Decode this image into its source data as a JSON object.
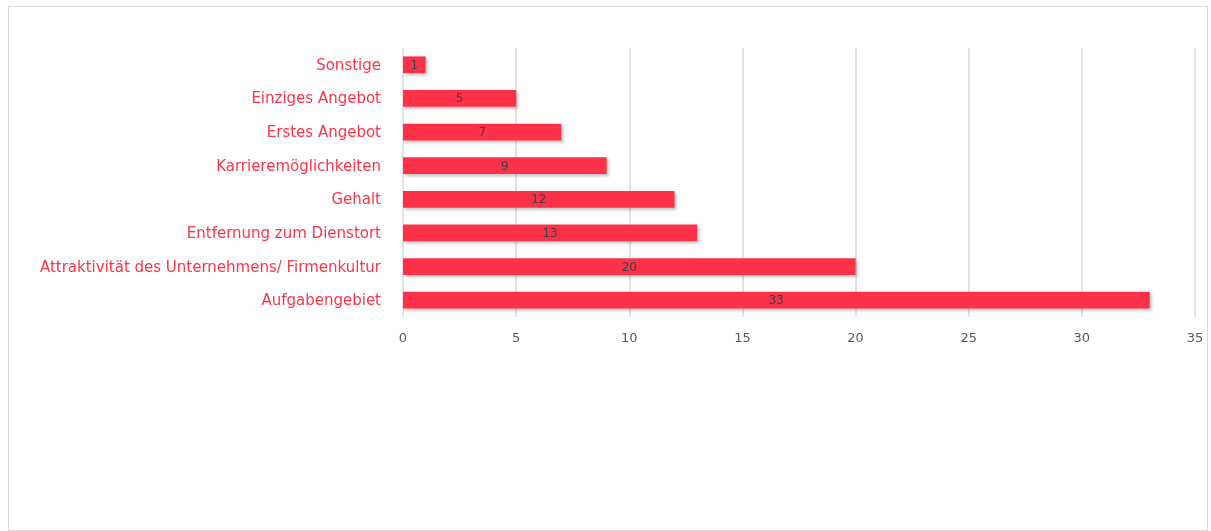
{
  "chart_data": {
    "type": "bar",
    "orientation": "horizontal",
    "categories": [
      "Sonstige",
      "Einziges Angebot",
      "Erstes Angebot",
      "Karrieremöglichkeiten",
      "Gehalt",
      "Entfernung zum Dienstort",
      "Attraktivität des Unternehmens/ Firmenkultur",
      "Aufgabengebiet"
    ],
    "values": [
      1,
      5,
      7,
      9,
      12,
      13,
      20,
      33
    ],
    "color": "#fd3348",
    "xlim": [
      0,
      35
    ],
    "xticks": [
      0,
      5,
      10,
      15,
      20,
      25,
      30,
      35
    ],
    "grid": "x",
    "data_labels": true
  }
}
